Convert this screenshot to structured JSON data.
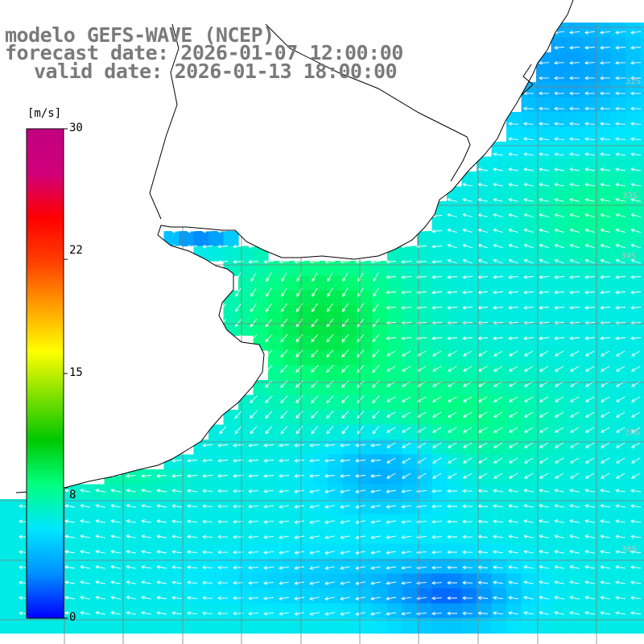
{
  "map": {
    "title": {
      "line1": "modelo GEFS-WAVE (NCEP)",
      "line2": "forecast date: 2026-01-07 12:00:00",
      "line3": "valid date: 2026-01-13 18:00:00"
    },
    "variable": "wind speed and direction",
    "colorbar": {
      "unit": "[m/s]",
      "min": 0,
      "max": 30,
      "tick_labels": [
        "30",
        "22",
        "15",
        "8",
        "0"
      ],
      "tick_values": [
        30,
        22,
        15,
        8,
        0
      ],
      "colors": [
        "#0000ff",
        "#0090ff",
        "#00e6ff",
        "#00ff80",
        "#00c800",
        "#80e000",
        "#ffff00",
        "#ffa000",
        "#ff4000",
        "#ff0000",
        "#d0007a",
        "#c00080"
      ]
    },
    "grid_labels": [
      "32S",
      "33S",
      "34S",
      "35S",
      "36S"
    ],
    "land_color": "#ffffff",
    "coastline_color": "#000000",
    "grid_color": "#808080",
    "arrow_color": "#ffffff"
  }
}
